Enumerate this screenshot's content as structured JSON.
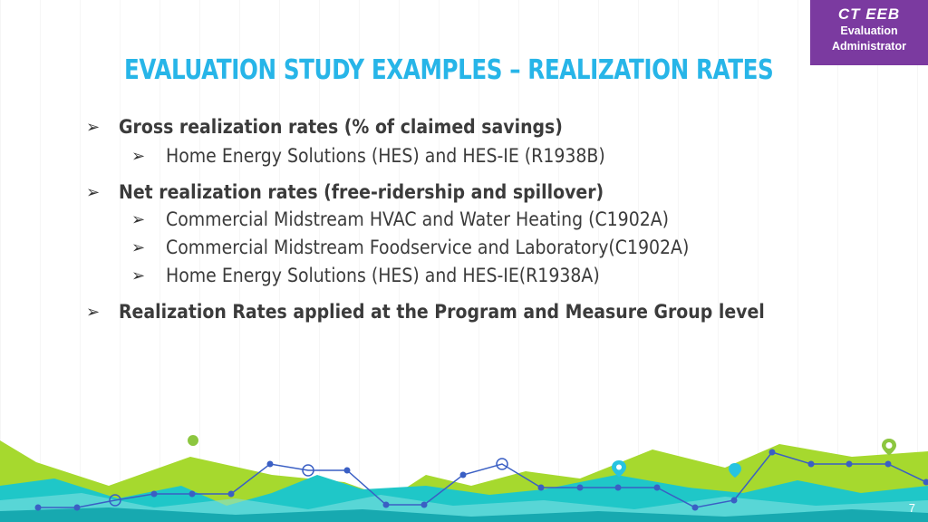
{
  "badge": {
    "line1": "CT EEB",
    "line2": "Evaluation",
    "line3": "Administrator"
  },
  "title": "EVALUATION STUDY EXAMPLES – REALIZATION RATES",
  "bullets": [
    {
      "text": "Gross realization rates (% of claimed savings)",
      "sub": [
        "Home Energy Solutions (HES) and HES-IE (R1938B)"
      ]
    },
    {
      "text": "Net realization rates (free-ridership and spillover)",
      "sub": [
        "Commercial Midstream HVAC and Water Heating (C1902A)",
        "Commercial Midstream Foodservice and Laboratory(C1902A)",
        "Home Energy Solutions (HES) and HES-IE(R1938A)"
      ]
    },
    {
      "text": "Realization Rates applied at the Program and Measure Group level",
      "sub": []
    }
  ],
  "arrow_glyph": "➢",
  "page_number": "7",
  "colors": {
    "title": "#27b5e8",
    "badge": "#7b3aa0",
    "lime": "#a6d92e",
    "teal": "#1fc7c8",
    "line": "#3a5fc4"
  }
}
